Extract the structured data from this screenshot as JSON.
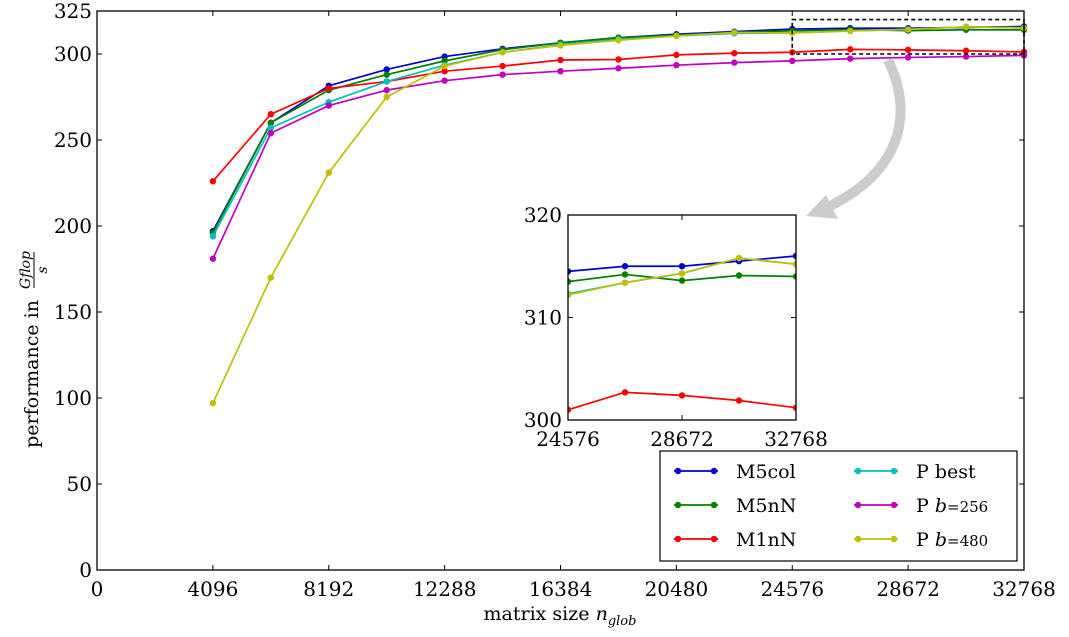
{
  "chart_data": [
    {
      "type": "line",
      "xlabel": "matrix size",
      "xlabel_sub": "n",
      "xlabel_subscript": "glob",
      "ylabel": "performance in",
      "ylabel_frac_num": "Gflop",
      "ylabel_frac_den": "s",
      "xlim": [
        0,
        32768
      ],
      "ylim": [
        0,
        325
      ],
      "xticks": [
        0,
        4096,
        8192,
        12288,
        16384,
        20480,
        24576,
        28672,
        32768
      ],
      "xtick_labels": [
        "0",
        "4096",
        "8192",
        "12288",
        "16384",
        "20480",
        "24576",
        "28672",
        "32768"
      ],
      "yticks": [
        0,
        50,
        100,
        150,
        200,
        250,
        300,
        325
      ],
      "ytick_labels": [
        "0",
        "50",
        "100",
        "150",
        "200",
        "250",
        "300",
        "325"
      ],
      "legend_position": "bottom-right",
      "legend_columns": 2,
      "series": [
        {
          "name": "M5col",
          "legend_prefix": "M5col",
          "legend_math": "",
          "color": "#0000cc",
          "x": [
            4096,
            6144,
            8192,
            10240,
            12288,
            14336,
            16384,
            18432,
            20480,
            22528,
            24576,
            26624,
            28672,
            30720,
            32768
          ],
          "y": [
            197,
            260,
            281.5,
            291,
            298.5,
            303,
            306.5,
            309.5,
            311.5,
            313,
            314.5,
            315,
            315,
            315.5,
            316
          ]
        },
        {
          "name": "M5nN",
          "legend_prefix": "M5nN",
          "legend_math": "",
          "color": "#008000",
          "x": [
            4096,
            6144,
            8192,
            10240,
            12288,
            14336,
            16384,
            18432,
            20480,
            22528,
            24576,
            26624,
            28672,
            30720,
            32768
          ],
          "y": [
            196,
            260,
            279,
            288,
            296,
            302.5,
            306.5,
            309.5,
            311,
            312.5,
            313.5,
            314.2,
            313.6,
            314.1,
            314
          ]
        },
        {
          "name": "M1nN",
          "legend_prefix": "M1nN",
          "legend_math": "",
          "color": "#ff0000",
          "x": [
            4096,
            6144,
            8192,
            10240,
            12288,
            14336,
            16384,
            18432,
            20480,
            22528,
            24576,
            26624,
            28672,
            30720,
            32768
          ],
          "y": [
            226,
            265,
            280,
            284,
            290,
            293,
            296.5,
            296.8,
            299.5,
            300.5,
            301,
            302.7,
            302.4,
            301.9,
            301.2
          ]
        },
        {
          "name": "P best",
          "legend_prefix": "P best",
          "legend_math": "",
          "color": "#00bfbf",
          "x": [
            4096,
            6144,
            8192,
            10240,
            12288,
            14336,
            16384,
            18432,
            20480,
            22528,
            24576,
            26624,
            28672,
            30720,
            32768
          ],
          "y": [
            194,
            257,
            272,
            284,
            293.5,
            301,
            305.5,
            308.5,
            310.5,
            312,
            312.3,
            313.4,
            314.3,
            315.8,
            315.2
          ]
        },
        {
          "name": "P b=256",
          "legend_prefix": "P ",
          "legend_math": "b=256",
          "color": "#bf00bf",
          "x": [
            4096,
            6144,
            8192,
            10240,
            12288,
            14336,
            16384,
            18432,
            20480,
            22528,
            24576,
            26624,
            28672,
            30720,
            32768
          ],
          "y": [
            181,
            254,
            270,
            279,
            284.5,
            288,
            290,
            291.7,
            293.5,
            295,
            296,
            297.3,
            298,
            298.5,
            299.2
          ]
        },
        {
          "name": "P b=480",
          "legend_prefix": "P ",
          "legend_math": "b=480",
          "color": "#bfbf00",
          "x": [
            4096,
            6144,
            8192,
            10240,
            12288,
            14336,
            16384,
            18432,
            20480,
            22528,
            24576,
            26624,
            28672,
            30720,
            32768
          ],
          "y": [
            97,
            170,
            231,
            275,
            293,
            301,
            305,
            308,
            310.5,
            312.5,
            312.2,
            313.4,
            314.3,
            315.8,
            315.2
          ]
        }
      ]
    },
    {
      "type": "line",
      "role": "inset",
      "xlim": [
        24576,
        32768
      ],
      "ylim": [
        300,
        320
      ],
      "xticks": [
        24576,
        28672,
        32768
      ],
      "xtick_labels": [
        "24576",
        "28672",
        "32768"
      ],
      "yticks": [
        300,
        310,
        320
      ],
      "ytick_labels": [
        "300",
        "310",
        "320"
      ],
      "zoom_box": {
        "x": [
          24576,
          32768
        ],
        "y": [
          300,
          320
        ]
      },
      "series_ref": "chart_data.0.series"
    }
  ]
}
